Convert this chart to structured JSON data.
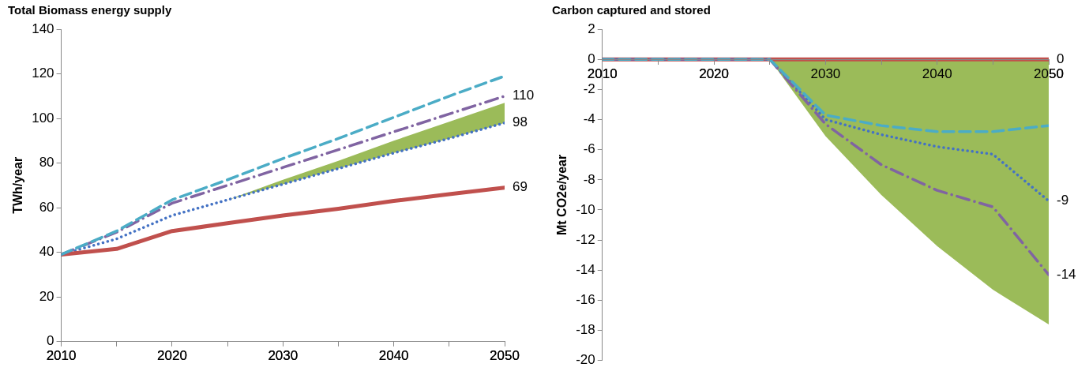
{
  "chart_data": [
    {
      "type": "line",
      "title": "Total Biomass energy supply",
      "ylabel": "TWh/year",
      "x": [
        2010,
        2015,
        2020,
        2025,
        2030,
        2035,
        2040,
        2045,
        2050
      ],
      "xlim": [
        2010,
        2050
      ],
      "xticks": [
        2010,
        {
          "value": 2015,
          "label": null
        },
        2020,
        {
          "value": 2025,
          "label": null
        },
        2030,
        {
          "value": 2035,
          "label": null
        },
        2040,
        {
          "value": 2045,
          "label": null
        },
        2050
      ],
      "ylim": [
        0,
        140
      ],
      "yticks": [
        0,
        20,
        40,
        60,
        80,
        100,
        120,
        140
      ],
      "series": [
        {
          "type": "area",
          "color": "#9bbb59",
          "values": [
            null,
            null,
            56.5,
            63.5,
            72.5,
            81,
            90,
            98.5,
            107
          ]
        },
        {
          "color": "#4472c4",
          "line_style": "dotted",
          "values": [
            39,
            46,
            56.5,
            63.5,
            70.5,
            77.5,
            84.5,
            91,
            98
          ],
          "value_labels": [
            null,
            null,
            null,
            null,
            null,
            null,
            null,
            null,
            "98"
          ]
        },
        {
          "color": "#c0504d",
          "line_style": "solid",
          "values": [
            39,
            41.5,
            49.5,
            53,
            56.5,
            59.5,
            63,
            66,
            69
          ],
          "value_labels": [
            null,
            null,
            null,
            null,
            null,
            null,
            null,
            null,
            "69"
          ]
        },
        {
          "color": "#8064a2",
          "line_style": "dashdot",
          "values": [
            39,
            49,
            62,
            70,
            78,
            86,
            94,
            102,
            110
          ],
          "value_labels": [
            null,
            null,
            null,
            null,
            null,
            null,
            null,
            null,
            "110"
          ]
        },
        {
          "color": "#4bacc6",
          "line_style": "dashed",
          "values": [
            39,
            49.5,
            63.5,
            72.5,
            82,
            91,
            100.5,
            110,
            119
          ]
        }
      ]
    },
    {
      "type": "line",
      "title": "Carbon captured and stored",
      "ylabel": "Mt CO2e/year",
      "x": [
        2010,
        2015,
        2020,
        2025,
        2030,
        2035,
        2040,
        2045,
        2050
      ],
      "xlim": [
        2010,
        2050
      ],
      "xticks": [
        2010,
        {
          "value": 2015,
          "label": null
        },
        2020,
        {
          "value": 2025,
          "label": null
        },
        2030,
        {
          "value": 2035,
          "label": null
        },
        2040,
        {
          "value": 2045,
          "label": null
        },
        2050
      ],
      "ylim": [
        -20,
        2
      ],
      "yticks": [
        -20,
        -18,
        -16,
        -14,
        -12,
        -10,
        -8,
        -6,
        -4,
        -2,
        0,
        2
      ],
      "series": [
        {
          "type": "area",
          "color": "#9bbb59",
          "values": [
            null,
            null,
            null,
            0,
            -5.1,
            -9,
            -12.4,
            -15.3,
            -17.6
          ]
        },
        {
          "color": "#c0504d",
          "line_style": "solid",
          "values": [
            0,
            0,
            0,
            0,
            0,
            0,
            0,
            0,
            0
          ],
          "value_labels": [
            null,
            null,
            null,
            null,
            null,
            null,
            null,
            null,
            "0"
          ]
        },
        {
          "color": "#4472c4",
          "line_style": "dotted",
          "values": [
            0,
            0,
            0,
            0,
            -4,
            -5,
            -5.8,
            -6.3,
            -9.4
          ],
          "value_labels": [
            null,
            null,
            null,
            null,
            null,
            null,
            null,
            null,
            "-9"
          ]
        },
        {
          "color": "#8064a2",
          "line_style": "dashdot",
          "values": [
            0,
            0,
            0,
            0,
            -4.3,
            -7,
            -8.7,
            -9.8,
            -14.3
          ],
          "value_labels": [
            null,
            null,
            null,
            null,
            null,
            null,
            null,
            null,
            "-14"
          ]
        },
        {
          "color": "#4bacc6",
          "line_style": "dashed",
          "values": [
            0,
            0,
            0,
            0,
            -3.7,
            -4.4,
            -4.8,
            -4.8,
            -4.4
          ]
        }
      ]
    }
  ]
}
